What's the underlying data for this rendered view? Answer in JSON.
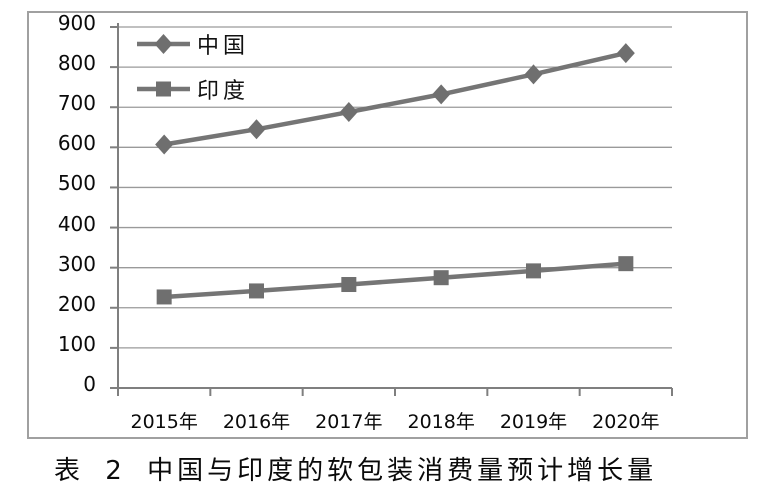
{
  "caption": "表 2 中国与印度的软包装消费量预计增长量",
  "colors": {
    "series_line": "#757575",
    "marker_fill": "#6f6f6f",
    "gridline": "#9a9a9a",
    "axis": "#7f7f7f",
    "frame_border": "#a0a0a0",
    "text": "#0a0a0a",
    "background": "#ffffff"
  },
  "chart_data": {
    "type": "line",
    "title": "",
    "xlabel": "",
    "ylabel": "",
    "categories": [
      "2015年",
      "2016年",
      "2017年",
      "2018年",
      "2019年",
      "2020年"
    ],
    "series": [
      {
        "id": "china",
        "name": "中国",
        "marker": "diamond",
        "values": [
          607,
          645,
          688,
          732,
          782,
          835
        ]
      },
      {
        "id": "india",
        "name": "印度",
        "marker": "square",
        "values": [
          227,
          242,
          258,
          275,
          292,
          310
        ]
      }
    ],
    "ylim": [
      0,
      900
    ],
    "ytick_step": 100,
    "ytick_labels": [
      "0",
      "100",
      "200",
      "300",
      "400",
      "500",
      "600",
      "700",
      "800",
      "900"
    ],
    "grid": "horizontal",
    "legend_position": "top-left-inside"
  }
}
